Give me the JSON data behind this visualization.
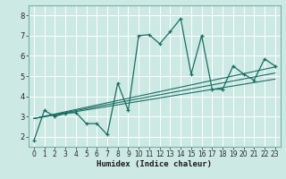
{
  "xlabel": "Humidex (Indice chaleur)",
  "xlim": [
    -0.5,
    23.5
  ],
  "ylim": [
    1.5,
    8.5
  ],
  "xticks": [
    0,
    1,
    2,
    3,
    4,
    5,
    6,
    7,
    8,
    9,
    10,
    11,
    12,
    13,
    14,
    15,
    16,
    17,
    18,
    19,
    20,
    21,
    22,
    23
  ],
  "yticks": [
    2,
    3,
    4,
    5,
    6,
    7,
    8
  ],
  "bg_color": "#cce9e4",
  "line_color": "#1a6e62",
  "grid_color": "#ffffff",
  "series_main": {
    "x": [
      0,
      1,
      2,
      3,
      4,
      5,
      6,
      7,
      8,
      9,
      10,
      11,
      12,
      13,
      14,
      15,
      16,
      17,
      18,
      19,
      20,
      21,
      22,
      23
    ],
    "y": [
      1.8,
      3.3,
      3.0,
      3.15,
      3.2,
      2.65,
      2.65,
      2.1,
      4.65,
      3.3,
      7.0,
      7.05,
      6.6,
      7.2,
      7.85,
      5.1,
      7.0,
      4.35,
      4.35,
      5.5,
      5.1,
      4.8,
      5.85,
      5.5
    ]
  },
  "trend_lines": [
    {
      "x": [
        0,
        23
      ],
      "y": [
        2.9,
        5.45
      ]
    },
    {
      "x": [
        0,
        23
      ],
      "y": [
        2.9,
        5.15
      ]
    },
    {
      "x": [
        0,
        23
      ],
      "y": [
        2.9,
        4.85
      ]
    }
  ]
}
